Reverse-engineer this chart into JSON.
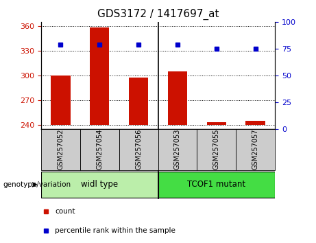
{
  "title": "GDS3172 / 1417697_at",
  "samples": [
    "GSM257052",
    "GSM257054",
    "GSM257056",
    "GSM257053",
    "GSM257055",
    "GSM257057"
  ],
  "bar_tops": [
    300,
    358,
    297,
    305,
    243,
    245
  ],
  "bar_baseline": 240,
  "percentile_values": [
    337,
    337,
    337,
    337,
    332,
    332
  ],
  "ylim_left": [
    235,
    365
  ],
  "yticks_left": [
    240,
    270,
    300,
    330,
    360
  ],
  "ylim_right": [
    0,
    100
  ],
  "yticks_right": [
    0,
    25,
    50,
    75,
    100
  ],
  "bar_color": "#cc1100",
  "dot_color": "#0000cc",
  "plot_bg": "#ffffff",
  "tick_color_left": "#cc1100",
  "tick_color_right": "#0000cc",
  "groups": [
    {
      "label": "widl type",
      "start": 0,
      "end": 3,
      "color": "#bbeeaa"
    },
    {
      "label": "TCOF1 mutant",
      "start": 3,
      "end": 6,
      "color": "#44dd44"
    }
  ],
  "sample_box_color": "#cccccc",
  "legend_items": [
    {
      "label": "count",
      "color": "#cc1100"
    },
    {
      "label": "percentile rank within the sample",
      "color": "#0000cc"
    }
  ],
  "genotype_label": "genotype/variation"
}
